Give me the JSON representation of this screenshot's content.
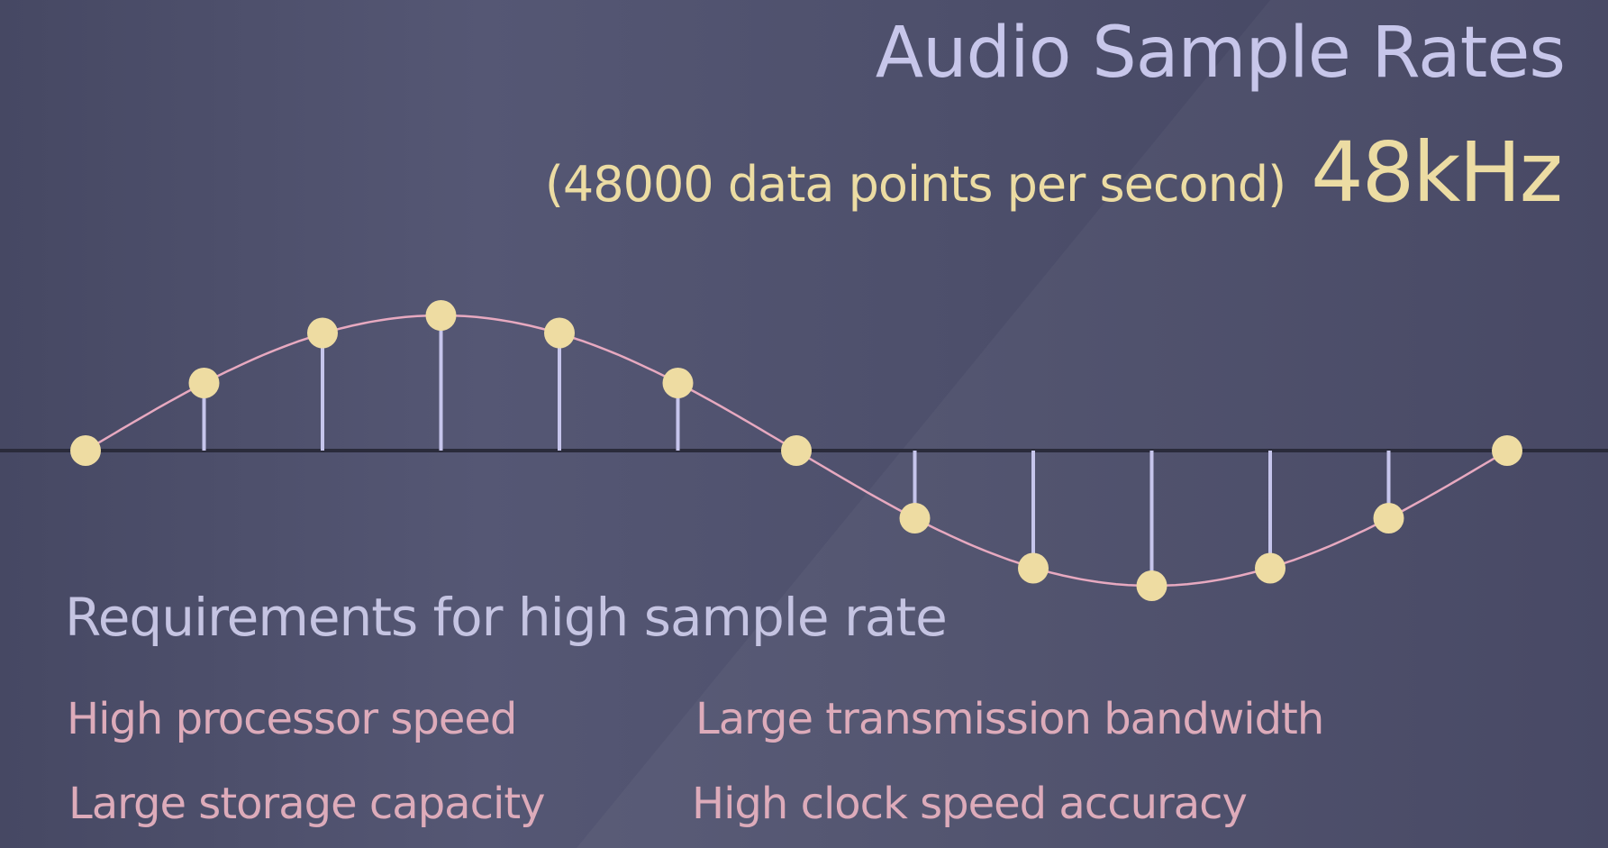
{
  "title": "Audio Sample Rates",
  "subtitle": {
    "note": "(48000 data points per second)",
    "rate": "48kHz"
  },
  "colors": {
    "title": "#c7c6ea",
    "accent": "#ecdca3",
    "wave": "#e7a9c0",
    "stem": "#c6c5ec",
    "axis": "#2a2b3b",
    "point": "#eedca2",
    "requirement": "#ddabba"
  },
  "diagram": {
    "samples": [
      0,
      0.5,
      0.87,
      1,
      0.87,
      0.5,
      0,
      -0.5,
      -0.87,
      -1,
      -0.87,
      -0.5,
      0
    ]
  },
  "requirements": {
    "heading": "Requirements for high sample rate",
    "items": [
      "High processor speed",
      "Large transmission bandwidth",
      "Large storage capacity",
      "High clock speed accuracy"
    ]
  }
}
